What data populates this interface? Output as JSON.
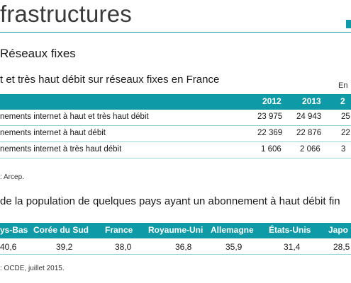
{
  "page": {
    "title": "frastructures",
    "accent_color": "#0e9aa7"
  },
  "section": {
    "heading": "Réseaux fixes"
  },
  "table1": {
    "subtitle": "t et très haut débit sur réseaux fixes en France",
    "unit": "En",
    "headers": [
      "2012",
      "2013",
      "2"
    ],
    "rows": [
      {
        "label": "nements internet à haut et très haut débit",
        "values": [
          "23 975",
          "24 943",
          "25"
        ]
      },
      {
        "label": "nements internet à haut débit",
        "values": [
          "22 369",
          "22 876",
          "22"
        ]
      },
      {
        "label": "nements internet à très haut débit",
        "values": [
          "1 606",
          "2 066",
          "3"
        ]
      }
    ],
    "source": ": Arcep."
  },
  "table2": {
    "subtitle": "de la population de quelques pays ayant un abonnement à haut débit fin",
    "headers": [
      "ys-Bas",
      "Corée du Sud",
      "France",
      "Royaume-Uni",
      "Allemagne",
      "États-Unis",
      "Japo"
    ],
    "values": [
      "40,6",
      "39,2",
      "38,0",
      "36,8",
      "35,9",
      "31,4",
      "28,5"
    ],
    "source": ": OCDE, juillet 2015."
  }
}
